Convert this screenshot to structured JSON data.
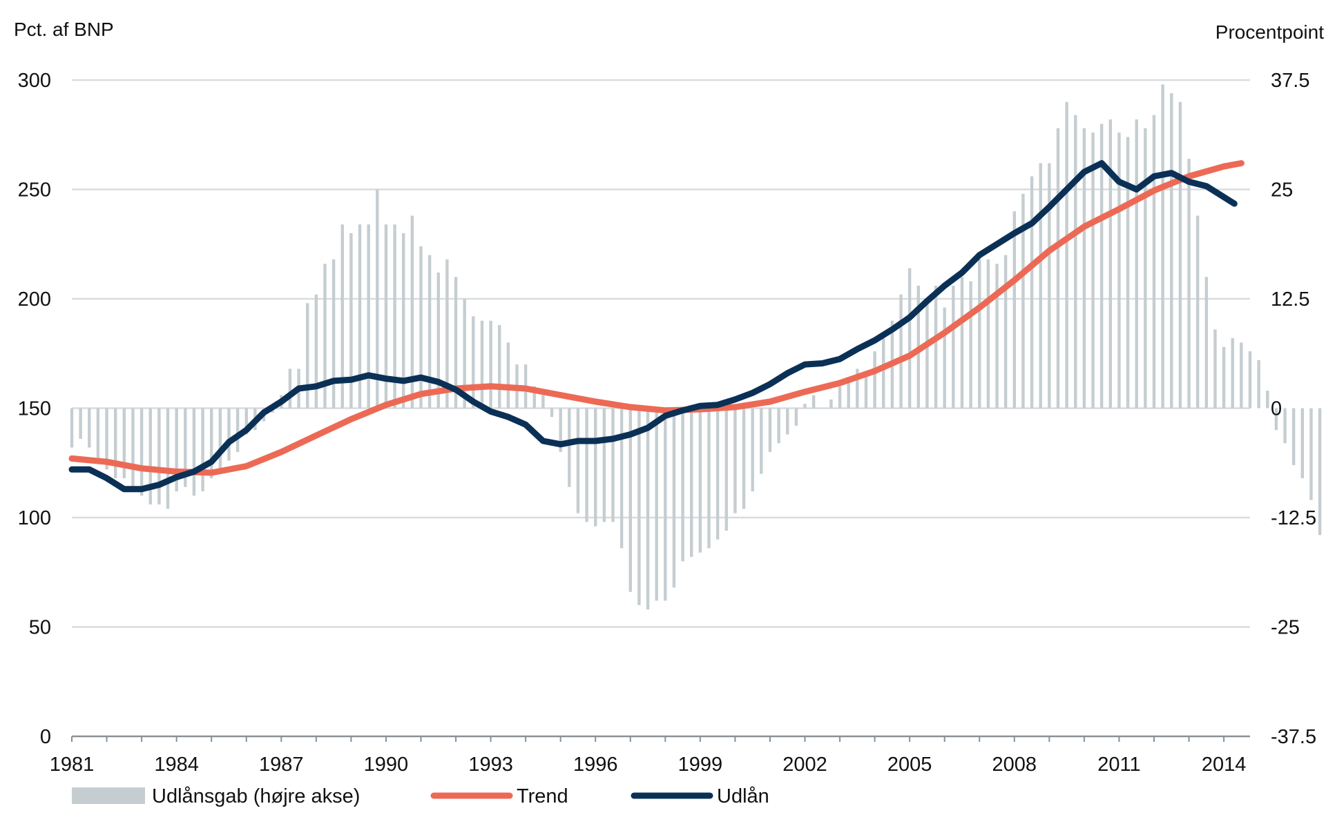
{
  "chart_data": {
    "type": "bar+line",
    "title": "",
    "y_left_label": "Pct. af BNP",
    "y_right_label": "Procentpoint",
    "y_left_ticks": [
      "0",
      "50",
      "100",
      "150",
      "200",
      "250",
      "300"
    ],
    "y_left_range": [
      0,
      300
    ],
    "y_right_ticks": [
      "-37.5",
      "-25",
      "-12.5",
      "0",
      "12.5",
      "25",
      "37.5"
    ],
    "y_right_range": [
      -37.5,
      37.5
    ],
    "x_ticks": [
      "1981",
      "1984",
      "1987",
      "1990",
      "1993",
      "1996",
      "1999",
      "2002",
      "2005",
      "2008",
      "2011",
      "2014"
    ],
    "x_range": [
      1981.0,
      2014.75
    ],
    "grid": true,
    "legend_position": "bottom",
    "legend": [
      {
        "name": "Udlånsgab (højre akse)",
        "color": "#c5cdd1",
        "type": "bar"
      },
      {
        "name": "Trend",
        "color": "#ec6a55",
        "type": "line"
      },
      {
        "name": "Udlån",
        "color": "#0b3056",
        "type": "line"
      }
    ],
    "series": [
      {
        "name": "Udlånsgab (højre akse)",
        "axis": "right",
        "type": "bar",
        "color": "#c5cdd1",
        "start": 1981.0,
        "step": 0.25,
        "values": [
          -4.5,
          -3.5,
          -4.5,
          -6,
          -7,
          -8,
          -8,
          -9,
          -10,
          -11,
          -11,
          -11.5,
          -9.5,
          -9,
          -10,
          -9.5,
          -8,
          -7,
          -6,
          -5,
          -3,
          -2.5,
          -1.5,
          -0.5,
          1.5,
          4.5,
          4.5,
          12,
          13,
          16.5,
          17,
          21,
          20,
          21,
          21,
          25,
          21,
          21,
          20,
          22,
          18.5,
          17.5,
          15.5,
          17,
          15,
          12.5,
          10.5,
          10,
          10,
          9.5,
          7.5,
          5,
          5,
          2.5,
          1.5,
          -1,
          -5,
          -9,
          -12,
          -13,
          -13.5,
          -13,
          -13,
          -16,
          -21,
          -22.5,
          -23,
          -22,
          -22,
          -20.5,
          -17.5,
          -17,
          -16.5,
          -16,
          -15,
          -14,
          -12,
          -11.5,
          -9.5,
          -7.5,
          -5,
          -4,
          -3,
          -2,
          0.5,
          1.5,
          0,
          1,
          2.5,
          3,
          4.5,
          4,
          6.5,
          8,
          10,
          13,
          16,
          14,
          12.5,
          14,
          11.5,
          14,
          15,
          14.5,
          17,
          17,
          16.5,
          17.5,
          22.5,
          24.5,
          26.5,
          28,
          28,
          32,
          35,
          33.5,
          32,
          31.5,
          32.5,
          33,
          31.5,
          31,
          33,
          32,
          33.5,
          37,
          36,
          35,
          28.5,
          22,
          15,
          9,
          7,
          8,
          7.5,
          6.5,
          5.5,
          2,
          -2.5,
          -4,
          -6.5,
          -8,
          -10.5,
          -14.5,
          -14.5,
          -18
        ]
      },
      {
        "name": "Trend",
        "axis": "left",
        "type": "line",
        "color": "#ec6a55",
        "x": [
          1981,
          1982,
          1983,
          1984,
          1985,
          1986,
          1987,
          1988,
          1989,
          1990,
          1991,
          1992,
          1993,
          1994,
          1995,
          1996,
          1997,
          1998,
          1999,
          2000,
          2001,
          2002,
          2003,
          2004,
          2005,
          2006,
          2007,
          2008,
          2009,
          2010,
          2011,
          2012,
          2013,
          2014,
          2014.5
        ],
        "values": [
          127,
          125.5,
          122.5,
          121,
          120.5,
          123.5,
          130,
          137.5,
          145,
          151.5,
          156.5,
          159,
          160,
          159,
          156,
          153,
          150.5,
          149,
          149.5,
          150.5,
          153,
          157.5,
          161.5,
          167,
          174,
          184.5,
          196,
          208.5,
          222,
          233,
          241,
          249.5,
          256,
          260.5,
          262
        ]
      },
      {
        "name": "Udlån",
        "axis": "left",
        "type": "line",
        "color": "#0b3056",
        "x": [
          1981,
          1981.5,
          1982,
          1982.5,
          1983,
          1983.5,
          1984,
          1984.5,
          1985,
          1985.5,
          1986,
          1986.5,
          1987,
          1987.5,
          1988,
          1988.5,
          1989,
          1989.5,
          1990,
          1990.5,
          1991,
          1991.5,
          1992,
          1992.5,
          1993,
          1993.5,
          1994,
          1994.5,
          1995,
          1995.5,
          1996,
          1996.5,
          1997,
          1997.5,
          1998,
          1998.5,
          1999,
          1999.5,
          2000,
          2000.5,
          2001,
          2001.5,
          2002,
          2002.5,
          2003,
          2003.5,
          2004,
          2004.5,
          2005,
          2005.5,
          2006,
          2006.5,
          2007,
          2007.5,
          2008,
          2008.5,
          2009,
          2009.5,
          2010,
          2010.5,
          2011,
          2011.5,
          2012,
          2012.5,
          2013,
          2013.5,
          2014,
          2014.3
        ],
        "values": [
          122,
          122,
          118,
          113,
          113,
          115,
          118.5,
          121,
          125.5,
          134.5,
          140,
          148,
          153,
          159,
          160,
          162.5,
          163,
          165,
          163.5,
          162.5,
          164,
          162,
          158.5,
          153,
          148.5,
          146,
          142.5,
          135,
          133.5,
          135,
          135,
          136,
          138,
          141,
          146.5,
          149,
          151,
          151.5,
          154,
          157,
          161,
          166,
          170,
          170.5,
          172.5,
          177,
          181,
          186,
          191.5,
          199,
          206,
          212,
          220,
          225,
          230,
          234.5,
          242,
          250,
          258,
          262,
          253.5,
          250,
          256,
          257.5,
          253.5,
          251.5,
          246.5,
          243.5
        ]
      }
    ]
  }
}
